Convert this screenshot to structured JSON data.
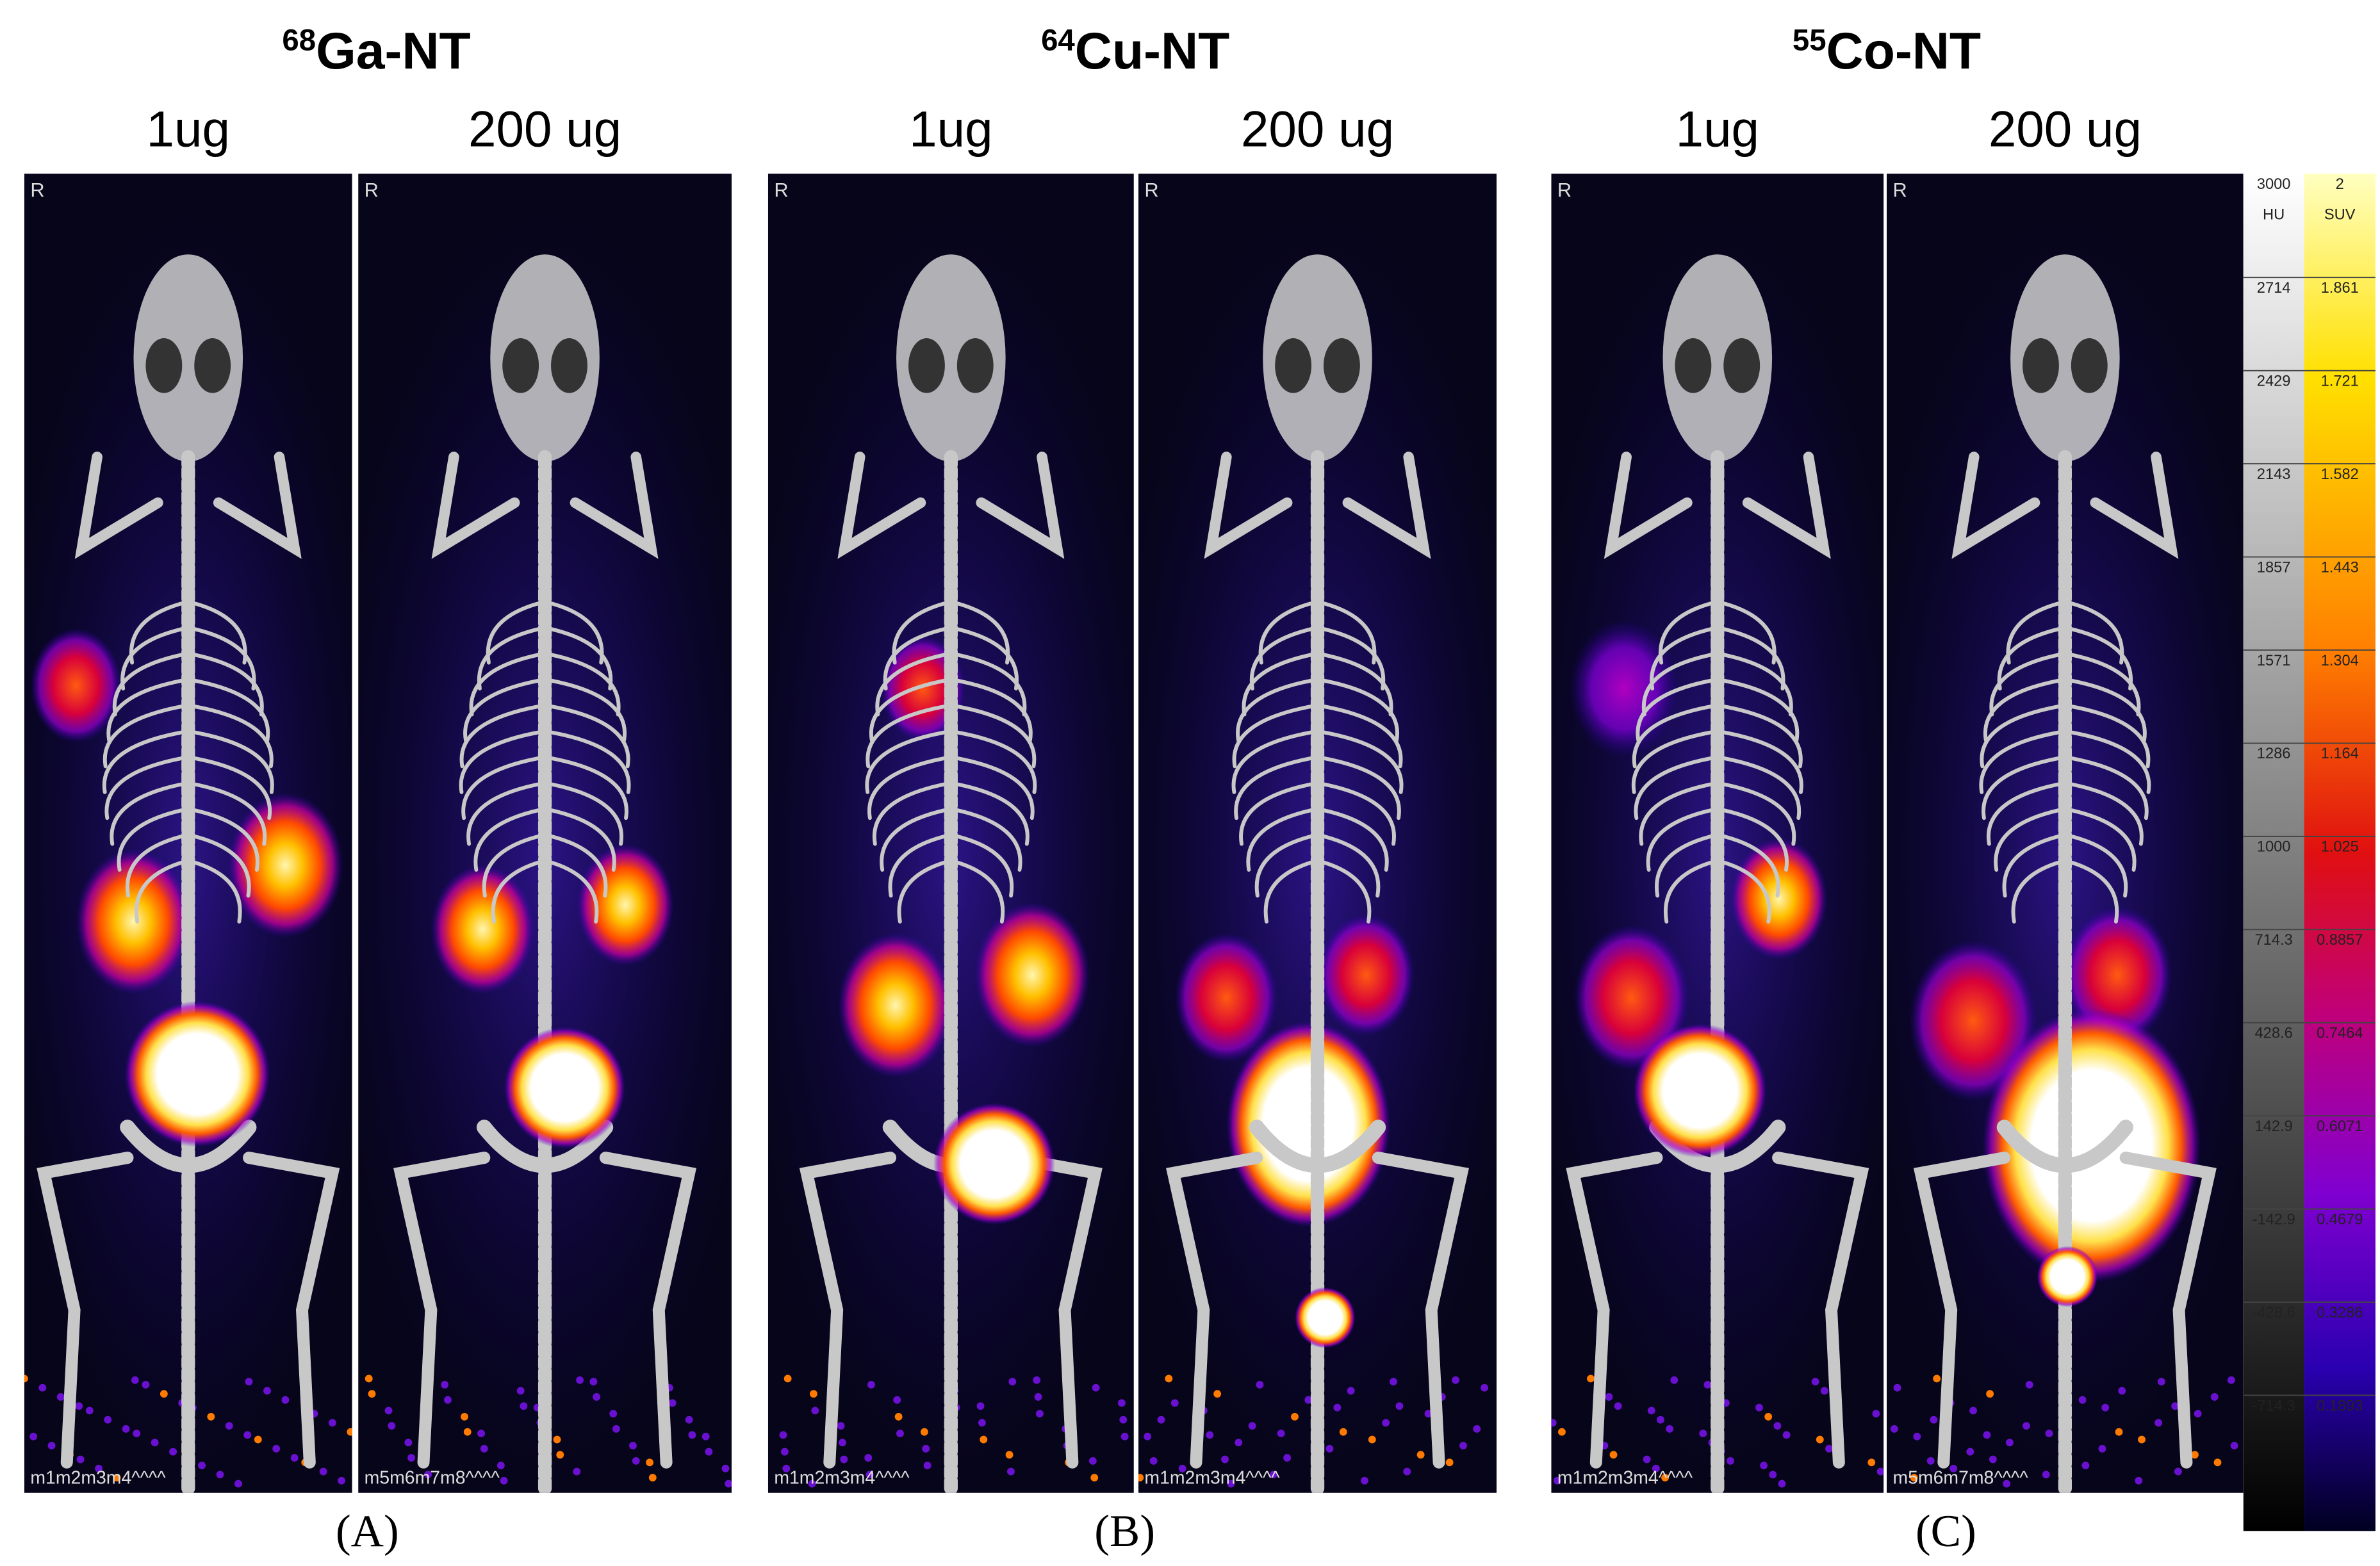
{
  "panels": [
    {
      "title": {
        "isotope_mass": "68",
        "name": "Ga-NT"
      },
      "label": "(A)",
      "images": [
        {
          "dose": "1ug",
          "orientation": "R",
          "footer": "m1m2m3m4^^^^"
        },
        {
          "dose": "200 ug",
          "orientation": "R",
          "footer": "m5m6m7m8^^^^"
        }
      ]
    },
    {
      "title": {
        "isotope_mass": "64",
        "name": "Cu-NT"
      },
      "label": "(B)",
      "images": [
        {
          "dose": "1ug",
          "orientation": "R",
          "footer": "m1m2m3m4^^^^"
        },
        {
          "dose": "200 ug",
          "orientation": "R",
          "footer": "m1m2m3m4^^^^"
        }
      ]
    },
    {
      "title": {
        "isotope_mass": "55",
        "name": "Co-NT"
      },
      "label": "(C)",
      "images": [
        {
          "dose": "1ug",
          "orientation": "R",
          "footer": "m1m2m3m4^^^^"
        },
        {
          "dose": "200 ug",
          "orientation": "R",
          "footer": "m5m6m7m8^^^^"
        }
      ]
    }
  ],
  "colorbar": {
    "hu": {
      "unit": "HU",
      "ticks": [
        3000,
        2714,
        2429,
        2143,
        1857,
        1571,
        1286,
        1000,
        714.3,
        428.6,
        142.9,
        -142.9,
        -428.6,
        -714.3
      ]
    },
    "suv": {
      "unit": "SUV",
      "ticks": [
        2,
        1.861,
        1.721,
        1.582,
        1.443,
        1.304,
        1.164,
        1.025,
        0.8857,
        0.7464,
        0.6071,
        0.4679,
        0.3286,
        0.1893
      ]
    }
  }
}
